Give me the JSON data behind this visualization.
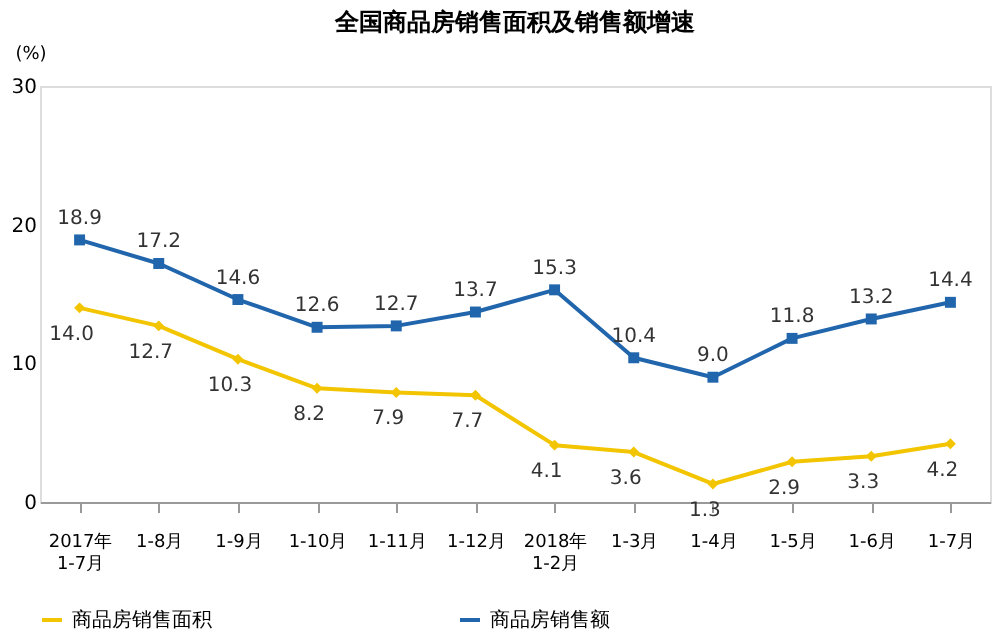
{
  "chart_data": {
    "type": "line",
    "title": "全国商品房销售面积及销售额增速",
    "ylabel": "(%)",
    "categories": [
      "2017年\n1-7月",
      "1-8月",
      "1-9月",
      "1-10月",
      "1-11月",
      "1-12月",
      "2018年\n1-2月",
      "1-3月",
      "1-4月",
      "1-5月",
      "1-6月",
      "1-7月"
    ],
    "series": [
      {
        "name": "商品房销售面积",
        "color": "#f2c500",
        "marker": "diamond",
        "values": [
          14.0,
          12.7,
          10.3,
          8.2,
          7.9,
          7.7,
          4.1,
          3.6,
          1.3,
          2.9,
          3.3,
          4.2
        ],
        "value_labels": [
          "14.0",
          "12.7",
          "10.3",
          "8.2",
          "7.9",
          "7.7",
          "4.1",
          "3.6",
          "1.3",
          "2.9",
          "3.3",
          "4.2"
        ]
      },
      {
        "name": "商品房销售额",
        "color": "#2166ac",
        "marker": "square",
        "values": [
          18.9,
          17.2,
          14.6,
          12.6,
          12.7,
          13.7,
          15.3,
          10.4,
          9.0,
          11.8,
          13.2,
          14.4
        ],
        "value_labels": [
          "18.9",
          "17.2",
          "14.6",
          "12.6",
          "12.7",
          "13.7",
          "15.3",
          "10.4",
          "9.0",
          "11.8",
          "13.2",
          "14.4"
        ]
      }
    ],
    "ylim": [
      0,
      30
    ],
    "yticks": [
      0,
      10,
      20,
      30
    ],
    "legend": "bottom",
    "grid": false
  }
}
